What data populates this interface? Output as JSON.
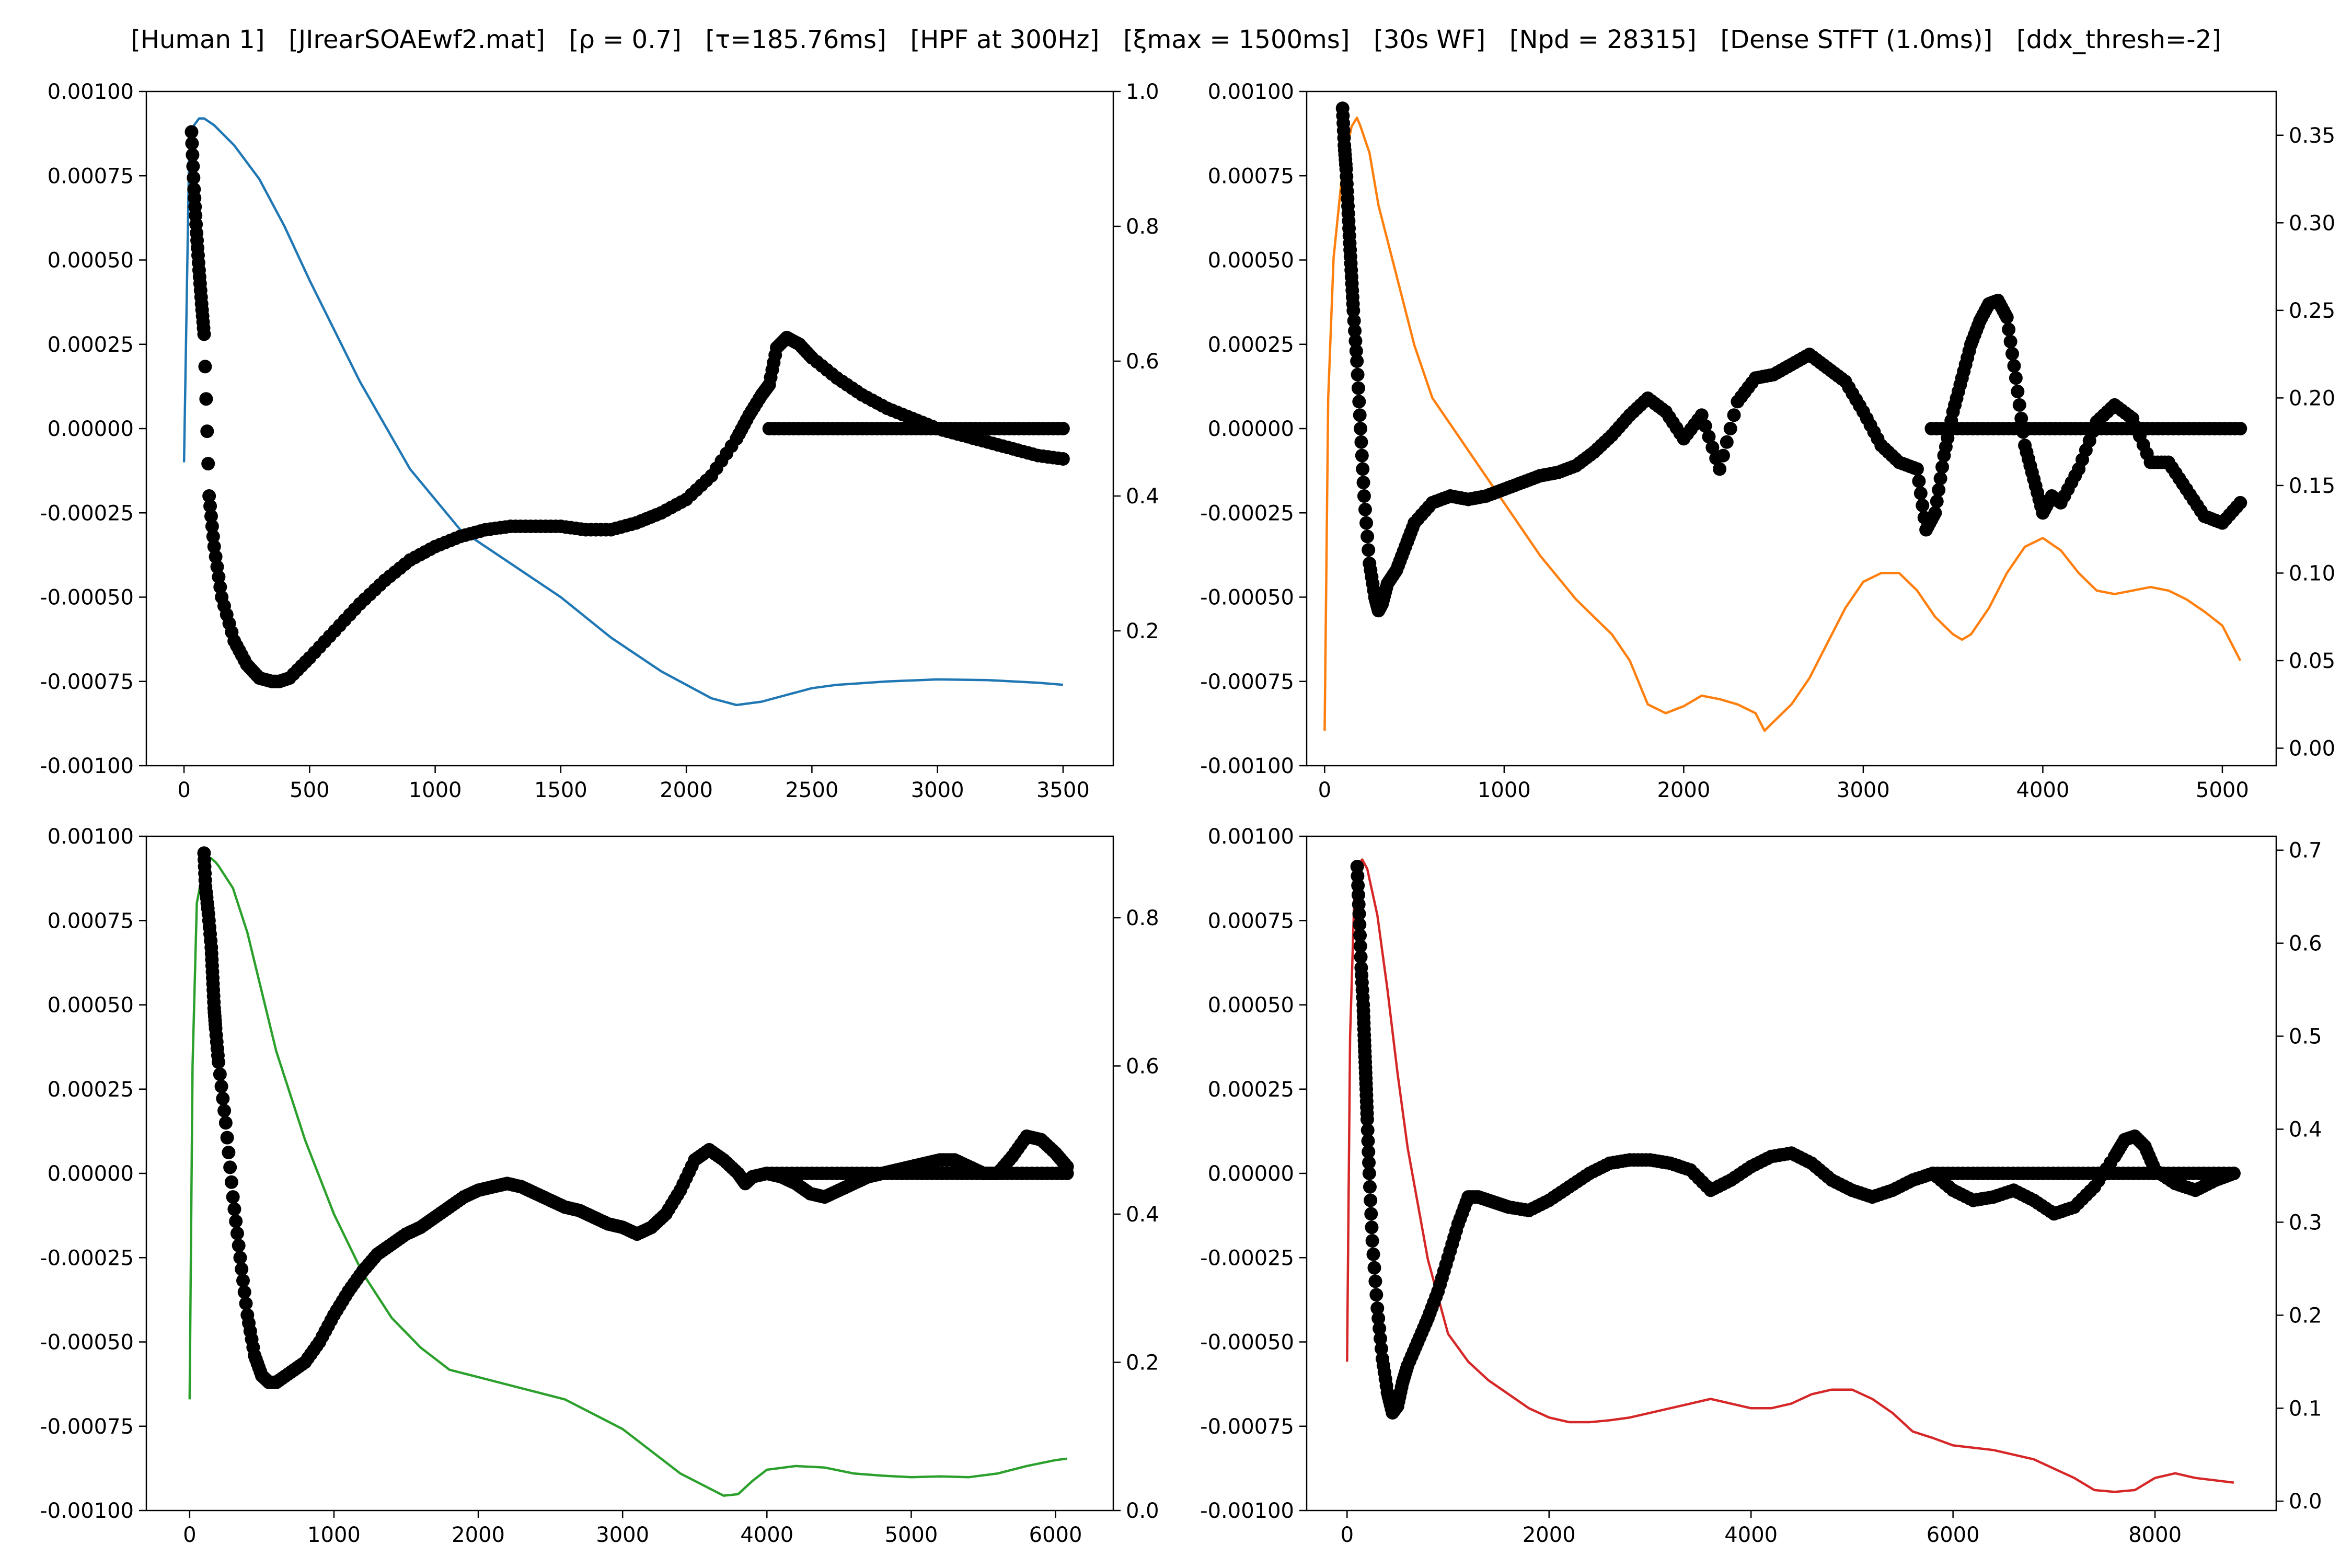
{
  "title": "[Human 1]   [JIrearSOAEwf2.mat]   [ρ = 0.7]   [τ=185.76ms]   [HPF at 300Hz]   [ξmax = 1500ms]   [30s WF]   [Npd = 28315]   [Dense STFT (1.0ms)]   [ddx_thresh=-2]",
  "chart_data": [
    {
      "type": "scatter+line",
      "position": "top-left",
      "xlim": [
        -150,
        3700
      ],
      "xticks": [
        0,
        500,
        1000,
        1500,
        2000,
        2500,
        3000,
        3500
      ],
      "left_ylim": [
        -0.001,
        0.001
      ],
      "left_yticks": [
        "-0.00100",
        "-0.00075",
        "-0.00050",
        "-0.00025",
        "0.00000",
        "0.00025",
        "0.00050",
        "0.00075",
        "0.00100"
      ],
      "right_ylim": [
        0.0,
        1.0
      ],
      "right_yticks": [
        "0.2",
        "0.4",
        "0.6",
        "0.8",
        "1.0"
      ],
      "line_color": "#1f77b4",
      "scatter_color": "#000000",
      "flat_segment": {
        "x": [
          2330,
          3500
        ],
        "y": 0.0
      },
      "scatter_series": {
        "x": [
          30,
          40,
          50,
          60,
          70,
          80,
          100,
          120,
          150,
          200,
          250,
          300,
          350,
          380,
          420,
          500,
          600,
          700,
          800,
          900,
          1000,
          1100,
          1200,
          1300,
          1400,
          1500,
          1600,
          1700,
          1800,
          1900,
          2000,
          2100,
          2200,
          2250,
          2300,
          2330,
          2360,
          2400,
          2450,
          2500,
          2600,
          2700,
          2800,
          2900,
          3000,
          3100,
          3200,
          3300,
          3400,
          3500
        ],
        "y": [
          0.00088,
          0.00071,
          0.00058,
          0.00047,
          0.00037,
          0.00028,
          -0.0002,
          -0.00035,
          -0.0005,
          -0.00063,
          -0.0007,
          -0.00074,
          -0.00075,
          -0.00075,
          -0.00074,
          -0.00068,
          -0.0006,
          -0.00052,
          -0.00045,
          -0.00039,
          -0.00035,
          -0.00032,
          -0.0003,
          -0.00029,
          -0.00029,
          -0.00029,
          -0.0003,
          -0.0003,
          -0.00028,
          -0.00025,
          -0.00021,
          -0.00014,
          -3e-05,
          4e-05,
          0.0001,
          0.00013,
          0.00024,
          0.00027,
          0.00025,
          0.00021,
          0.00015,
          0.0001,
          6e-05,
          3e-05,
          0.0,
          -2e-05,
          -4e-05,
          -6e-05,
          -8e-05,
          -9e-05
        ]
      },
      "line_series": {
        "x": [
          0,
          20,
          40,
          60,
          80,
          120,
          200,
          300,
          400,
          500,
          700,
          900,
          1100,
          1300,
          1500,
          1700,
          1900,
          2100,
          2200,
          2300,
          2400,
          2500,
          2600,
          2800,
          3000,
          3200,
          3400,
          3500
        ],
        "y": [
          0.45,
          0.9,
          0.95,
          0.96,
          0.96,
          0.95,
          0.92,
          0.87,
          0.8,
          0.72,
          0.57,
          0.44,
          0.35,
          0.3,
          0.25,
          0.19,
          0.14,
          0.1,
          0.09,
          0.095,
          0.105,
          0.115,
          0.12,
          0.125,
          0.128,
          0.127,
          0.123,
          0.12
        ]
      }
    },
    {
      "type": "scatter+line",
      "position": "top-right",
      "xlim": [
        -100,
        5300
      ],
      "xticks": [
        0,
        1000,
        2000,
        3000,
        4000,
        5000
      ],
      "left_ylim": [
        -0.001,
        0.001
      ],
      "left_yticks": [
        "-0.00100",
        "-0.00075",
        "-0.00050",
        "-0.00025",
        "0.00000",
        "0.00025",
        "0.00050",
        "0.00075",
        "0.00100"
      ],
      "right_ylim": [
        -0.01,
        0.375
      ],
      "right_yticks": [
        "0.00",
        "0.05",
        "0.10",
        "0.15",
        "0.20",
        "0.25",
        "0.30",
        "0.35"
      ],
      "line_color": "#ff7f0e",
      "scatter_color": "#000000",
      "flat_segment": {
        "x": [
          3380,
          5100
        ],
        "y": 0.0
      },
      "scatter_series": {
        "x": [
          100,
          110,
          120,
          130,
          140,
          150,
          160,
          180,
          200,
          220,
          250,
          280,
          300,
          320,
          350,
          400,
          450,
          500,
          600,
          700,
          800,
          900,
          1000,
          1100,
          1200,
          1300,
          1400,
          1500,
          1600,
          1700,
          1800,
          1900,
          2000,
          2100,
          2200,
          2300,
          2400,
          2500,
          2600,
          2700,
          2800,
          2900,
          3000,
          3100,
          3200,
          3300,
          3350,
          3400,
          3450,
          3500,
          3550,
          3600,
          3650,
          3700,
          3750,
          3800,
          3850,
          3900,
          3950,
          4000,
          4050,
          4100,
          4200,
          4300,
          4400,
          4500,
          4600,
          4700,
          4800,
          4900,
          5000,
          5100
        ],
        "y": [
          0.00095,
          0.00084,
          0.00077,
          0.00066,
          0.00055,
          0.00045,
          0.00035,
          0.0002,
          0.0,
          -0.0002,
          -0.0004,
          -0.0005,
          -0.00054,
          -0.00052,
          -0.00046,
          -0.00042,
          -0.00035,
          -0.00028,
          -0.00022,
          -0.0002,
          -0.00021,
          -0.0002,
          -0.00018,
          -0.00016,
          -0.00014,
          -0.00013,
          -0.00011,
          -7e-05,
          -2e-05,
          4e-05,
          9e-05,
          5e-05,
          -3e-05,
          4e-05,
          -0.00012,
          8e-05,
          0.00015,
          0.00016,
          0.00019,
          0.00022,
          0.00018,
          0.00014,
          5e-05,
          -5e-05,
          -0.0001,
          -0.00012,
          -0.0003,
          -0.00025,
          -8e-05,
          5e-05,
          0.00015,
          0.00025,
          0.00032,
          0.00037,
          0.00038,
          0.00033,
          0.00015,
          -5e-05,
          -0.00015,
          -0.00025,
          -0.0002,
          -0.00022,
          -0.00012,
          2e-05,
          7e-05,
          3e-05,
          -0.0001,
          -0.0001,
          -0.00018,
          -0.00026,
          -0.00028,
          -0.00022
        ]
      },
      "line_series": {
        "x": [
          0,
          20,
          50,
          100,
          150,
          180,
          200,
          250,
          300,
          400,
          500,
          600,
          800,
          1000,
          1200,
          1400,
          1600,
          1700,
          1800,
          1900,
          2000,
          2100,
          2200,
          2300,
          2400,
          2450,
          2500,
          2600,
          2700,
          2800,
          2900,
          3000,
          3100,
          3200,
          3300,
          3400,
          3500,
          3550,
          3600,
          3700,
          3800,
          3900,
          4000,
          4100,
          4200,
          4300,
          4400,
          4500,
          4600,
          4700,
          4800,
          4900,
          5000,
          5100
        ],
        "y": [
          0.01,
          0.2,
          0.28,
          0.33,
          0.355,
          0.36,
          0.355,
          0.34,
          0.31,
          0.27,
          0.23,
          0.2,
          0.17,
          0.14,
          0.11,
          0.085,
          0.065,
          0.05,
          0.025,
          0.02,
          0.024,
          0.03,
          0.028,
          0.025,
          0.02,
          0.01,
          0.015,
          0.025,
          0.04,
          0.06,
          0.08,
          0.095,
          0.1,
          0.1,
          0.09,
          0.075,
          0.065,
          0.062,
          0.065,
          0.08,
          0.1,
          0.115,
          0.12,
          0.113,
          0.1,
          0.09,
          0.088,
          0.09,
          0.092,
          0.09,
          0.085,
          0.078,
          0.07,
          0.05
        ]
      }
    },
    {
      "type": "scatter+line",
      "position": "bottom-left",
      "xlim": [
        -300,
        6400
      ],
      "xticks": [
        0,
        1000,
        2000,
        3000,
        4000,
        5000,
        6000
      ],
      "left_ylim": [
        -0.001,
        0.001
      ],
      "left_yticks": [
        "-0.00100",
        "-0.00075",
        "-0.00050",
        "-0.00025",
        "0.00000",
        "0.00025",
        "0.00050",
        "0.00075",
        "0.00100"
      ],
      "right_ylim": [
        0.0,
        0.91
      ],
      "right_yticks": [
        "0.0",
        "0.2",
        "0.4",
        "0.6",
        "0.8"
      ],
      "line_color": "#2ca02c",
      "scatter_color": "#000000",
      "flat_segment": {
        "x": [
          4000,
          6080
        ],
        "y": 0.0
      },
      "scatter_series": {
        "x": [
          100,
          110,
          130,
          150,
          160,
          170,
          180,
          200,
          250,
          300,
          350,
          400,
          450,
          500,
          550,
          600,
          700,
          800,
          900,
          1000,
          1100,
          1200,
          1300,
          1400,
          1500,
          1600,
          1700,
          1800,
          1900,
          2000,
          2100,
          2200,
          2300,
          2400,
          2500,
          2600,
          2700,
          2800,
          2900,
          3000,
          3100,
          3200,
          3300,
          3400,
          3500,
          3600,
          3700,
          3800,
          3850,
          3900,
          4000,
          4100,
          4200,
          4300,
          4400,
          4500,
          4600,
          4700,
          4800,
          4900,
          5000,
          5100,
          5200,
          5300,
          5400,
          5500,
          5600,
          5700,
          5800,
          5900,
          6000,
          6080
        ],
        "y": [
          0.00095,
          0.00085,
          0.00077,
          0.00067,
          0.00058,
          0.00049,
          0.00043,
          0.00033,
          0.00015,
          -7e-05,
          -0.00025,
          -0.00042,
          -0.00054,
          -0.0006,
          -0.00062,
          -0.00062,
          -0.00059,
          -0.00056,
          -0.0005,
          -0.00042,
          -0.00035,
          -0.00029,
          -0.00024,
          -0.00021,
          -0.00018,
          -0.00016,
          -0.00013,
          -0.0001,
          -7e-05,
          -5e-05,
          -4e-05,
          -3e-05,
          -4e-05,
          -6e-05,
          -8e-05,
          -0.0001,
          -0.00011,
          -0.00013,
          -0.00015,
          -0.00016,
          -0.00018,
          -0.00016,
          -0.00012,
          -5e-05,
          4e-05,
          7e-05,
          4e-05,
          0.0,
          -3e-05,
          -1e-05,
          0.0,
          -1e-05,
          -3e-05,
          -6e-05,
          -7e-05,
          -5e-05,
          -3e-05,
          -1e-05,
          0.0,
          1e-05,
          2e-05,
          3e-05,
          4e-05,
          4e-05,
          2e-05,
          0.0,
          0.0,
          5e-05,
          0.00011,
          0.0001,
          6e-05,
          2e-05
        ]
      },
      "line_series": {
        "x": [
          0,
          20,
          50,
          100,
          150,
          180,
          200,
          300,
          400,
          500,
          600,
          800,
          1000,
          1200,
          1400,
          1600,
          1800,
          2000,
          2200,
          2400,
          2600,
          2800,
          3000,
          3200,
          3400,
          3600,
          3700,
          3800,
          3900,
          4000,
          4200,
          4400,
          4600,
          4800,
          5000,
          5200,
          5400,
          5600,
          5800,
          6000,
          6080
        ],
        "y": [
          0.15,
          0.6,
          0.82,
          0.87,
          0.88,
          0.875,
          0.87,
          0.84,
          0.78,
          0.7,
          0.62,
          0.5,
          0.4,
          0.32,
          0.26,
          0.22,
          0.19,
          0.18,
          0.17,
          0.16,
          0.15,
          0.13,
          0.11,
          0.08,
          0.05,
          0.03,
          0.02,
          0.022,
          0.04,
          0.055,
          0.06,
          0.058,
          0.05,
          0.047,
          0.045,
          0.046,
          0.045,
          0.05,
          0.06,
          0.068,
          0.07
        ]
      }
    },
    {
      "type": "scatter+line",
      "position": "bottom-right",
      "xlim": [
        -400,
        9200
      ],
      "xticks": [
        0,
        2000,
        4000,
        6000,
        8000
      ],
      "left_ylim": [
        -0.001,
        0.001
      ],
      "left_yticks": [
        "-0.00100",
        "-0.00075",
        "-0.00050",
        "-0.00025",
        "0.00000",
        "0.00025",
        "0.00050",
        "0.00075",
        "0.00100"
      ],
      "right_ylim": [
        -0.01,
        0.715
      ],
      "right_yticks": [
        "0.0",
        "0.1",
        "0.2",
        "0.3",
        "0.4",
        "0.5",
        "0.6",
        "0.7"
      ],
      "line_color": "#d62728",
      "scatter_color": "#000000",
      "flat_segment": {
        "x": [
          5800,
          8780
        ],
        "y": 0.0
      },
      "scatter_series": {
        "x": [
          100,
          120,
          140,
          160,
          170,
          180,
          190,
          200,
          220,
          250,
          300,
          350,
          400,
          450,
          500,
          550,
          600,
          700,
          800,
          900,
          1000,
          1100,
          1200,
          1300,
          1400,
          1500,
          1600,
          1800,
          2000,
          2200,
          2400,
          2600,
          2800,
          3000,
          3200,
          3400,
          3600,
          3800,
          4000,
          4200,
          4400,
          4600,
          4800,
          5000,
          5200,
          5400,
          5600,
          5800,
          6000,
          6200,
          6400,
          6600,
          6800,
          7000,
          7200,
          7400,
          7600,
          7700,
          7800,
          7900,
          8000,
          8200,
          8400,
          8600,
          8780
        ],
        "y": [
          0.00091,
          0.00077,
          0.00061,
          0.0005,
          0.00041,
          0.00033,
          0.00025,
          0.00016,
          0.0,
          -0.0002,
          -0.0004,
          -0.00055,
          -0.00065,
          -0.00071,
          -0.00069,
          -0.00062,
          -0.00057,
          -0.0005,
          -0.00043,
          -0.00035,
          -0.00025,
          -0.00015,
          -7e-05,
          -7e-05,
          -8e-05,
          -9e-05,
          -0.0001,
          -0.00011,
          -8e-05,
          -4e-05,
          0.0,
          3e-05,
          4e-05,
          4e-05,
          3e-05,
          1e-05,
          -5e-05,
          -2e-05,
          2e-05,
          5e-05,
          6e-05,
          3e-05,
          -2e-05,
          -5e-05,
          -7e-05,
          -5e-05,
          -2e-05,
          0.0,
          -5e-05,
          -8e-05,
          -7e-05,
          -5e-05,
          -8e-05,
          -0.00012,
          -0.0001,
          -4e-05,
          5e-05,
          0.0001,
          0.00011,
          8e-05,
          1e-05,
          -3e-05,
          -5e-05,
          -2e-05,
          0.0
        ]
      },
      "line_series": {
        "x": [
          0,
          30,
          80,
          150,
          200,
          300,
          400,
          500,
          600,
          800,
          1000,
          1200,
          1400,
          1600,
          1800,
          2000,
          2200,
          2400,
          2600,
          2800,
          3000,
          3200,
          3400,
          3600,
          3800,
          4000,
          4200,
          4400,
          4600,
          4800,
          5000,
          5200,
          5400,
          5600,
          5800,
          6000,
          6400,
          6800,
          7000,
          7200,
          7400,
          7600,
          7800,
          8000,
          8200,
          8400,
          8780
        ],
        "y": [
          0.15,
          0.5,
          0.68,
          0.69,
          0.68,
          0.63,
          0.55,
          0.46,
          0.38,
          0.26,
          0.18,
          0.15,
          0.13,
          0.115,
          0.1,
          0.09,
          0.085,
          0.085,
          0.087,
          0.09,
          0.095,
          0.1,
          0.105,
          0.11,
          0.105,
          0.1,
          0.1,
          0.105,
          0.115,
          0.12,
          0.12,
          0.11,
          0.095,
          0.075,
          0.068,
          0.06,
          0.055,
          0.045,
          0.035,
          0.025,
          0.012,
          0.01,
          0.012,
          0.025,
          0.03,
          0.025,
          0.02
        ]
      }
    }
  ]
}
